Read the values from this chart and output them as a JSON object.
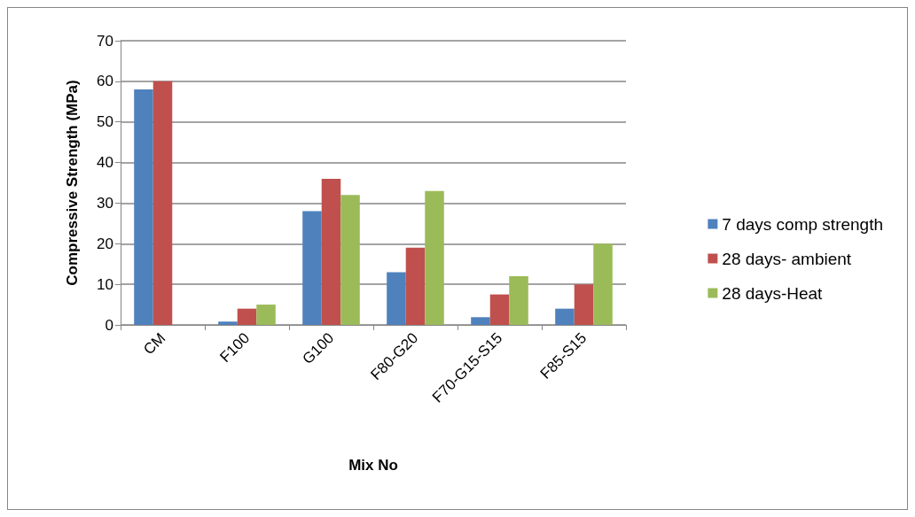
{
  "chart_data": {
    "type": "bar",
    "xlabel": "Mix No",
    "ylabel": "Compressive Strength (MPa)",
    "categories": [
      "CM",
      "F100",
      "G100",
      "F80-G20",
      "F70-G15-S15",
      "F85-S15"
    ],
    "series": [
      {
        "name": "7 days comp strength",
        "color": "#4f81bd",
        "values": [
          58,
          0.8,
          28,
          13,
          1.9,
          4
        ]
      },
      {
        "name": "28 days- ambient",
        "color": "#c0504d",
        "values": [
          60,
          4,
          36,
          19,
          7.5,
          10
        ]
      },
      {
        "name": "28 days-Heat",
        "color": "#9bbb59",
        "values": [
          null,
          5,
          32,
          33,
          12,
          20
        ]
      }
    ],
    "ylim": [
      0,
      70
    ],
    "yticks": [
      0,
      10,
      20,
      30,
      40,
      50,
      60,
      70
    ],
    "grid": "y",
    "legend": "right"
  }
}
